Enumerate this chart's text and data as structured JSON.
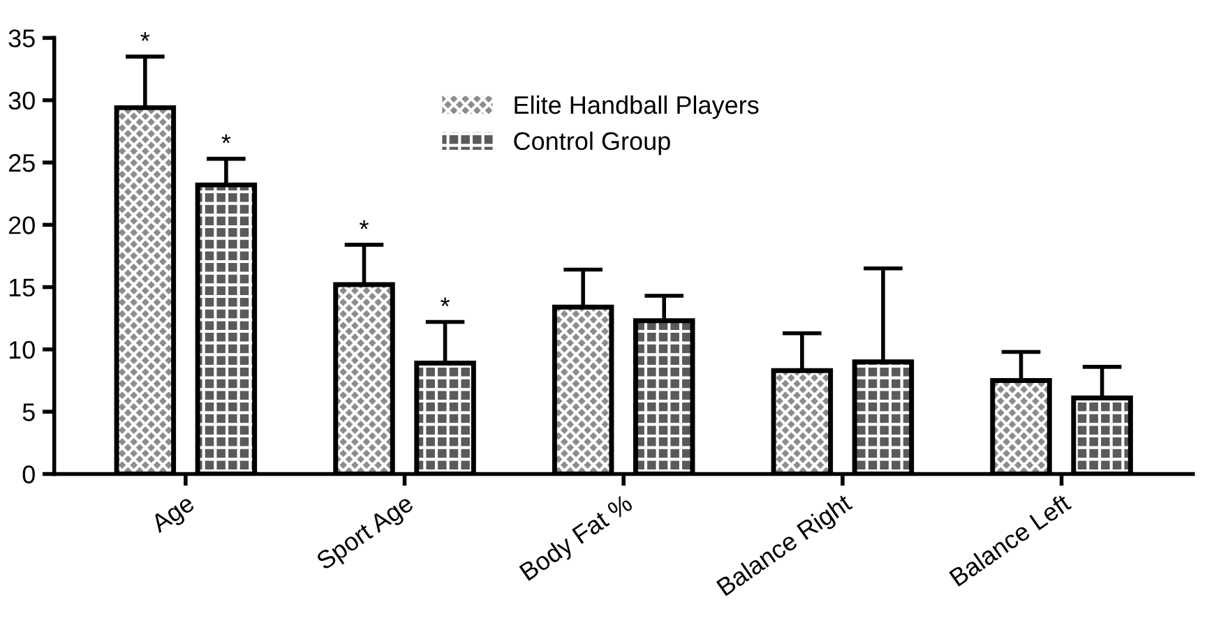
{
  "chart_data": {
    "type": "bar",
    "categories": [
      "Age",
      "Sport Age",
      "Body Fat %",
      "Balance Right",
      "Balance Left"
    ],
    "series": [
      {
        "name": "Elite Handball Players",
        "color": "#8c8c8c",
        "values": [
          29.4,
          15.2,
          13.4,
          8.3,
          7.5
        ],
        "errors": [
          [
            29.4,
            33.5
          ],
          [
            15.2,
            18.4
          ],
          [
            13.4,
            16.4
          ],
          [
            8.3,
            11.3
          ],
          [
            7.5,
            9.8
          ]
        ],
        "value_labels": [
          "*",
          "*",
          null,
          null,
          null
        ]
      },
      {
        "name": "Control Group",
        "color": "#5a5a5a",
        "values": [
          23.2,
          8.9,
          12.3,
          9.0,
          6.1
        ],
        "errors": [
          [
            23.2,
            25.3
          ],
          [
            8.9,
            12.2
          ],
          [
            12.3,
            14.3
          ],
          [
            9.0,
            16.5
          ],
          [
            6.1,
            8.6
          ]
        ],
        "value_labels": [
          "*",
          "*",
          null,
          null,
          null
        ]
      }
    ],
    "ylim": [
      0,
      35
    ],
    "yticks": [
      0,
      5,
      10,
      15,
      20,
      25,
      30,
      35
    ],
    "grid": false,
    "legend": "top"
  }
}
